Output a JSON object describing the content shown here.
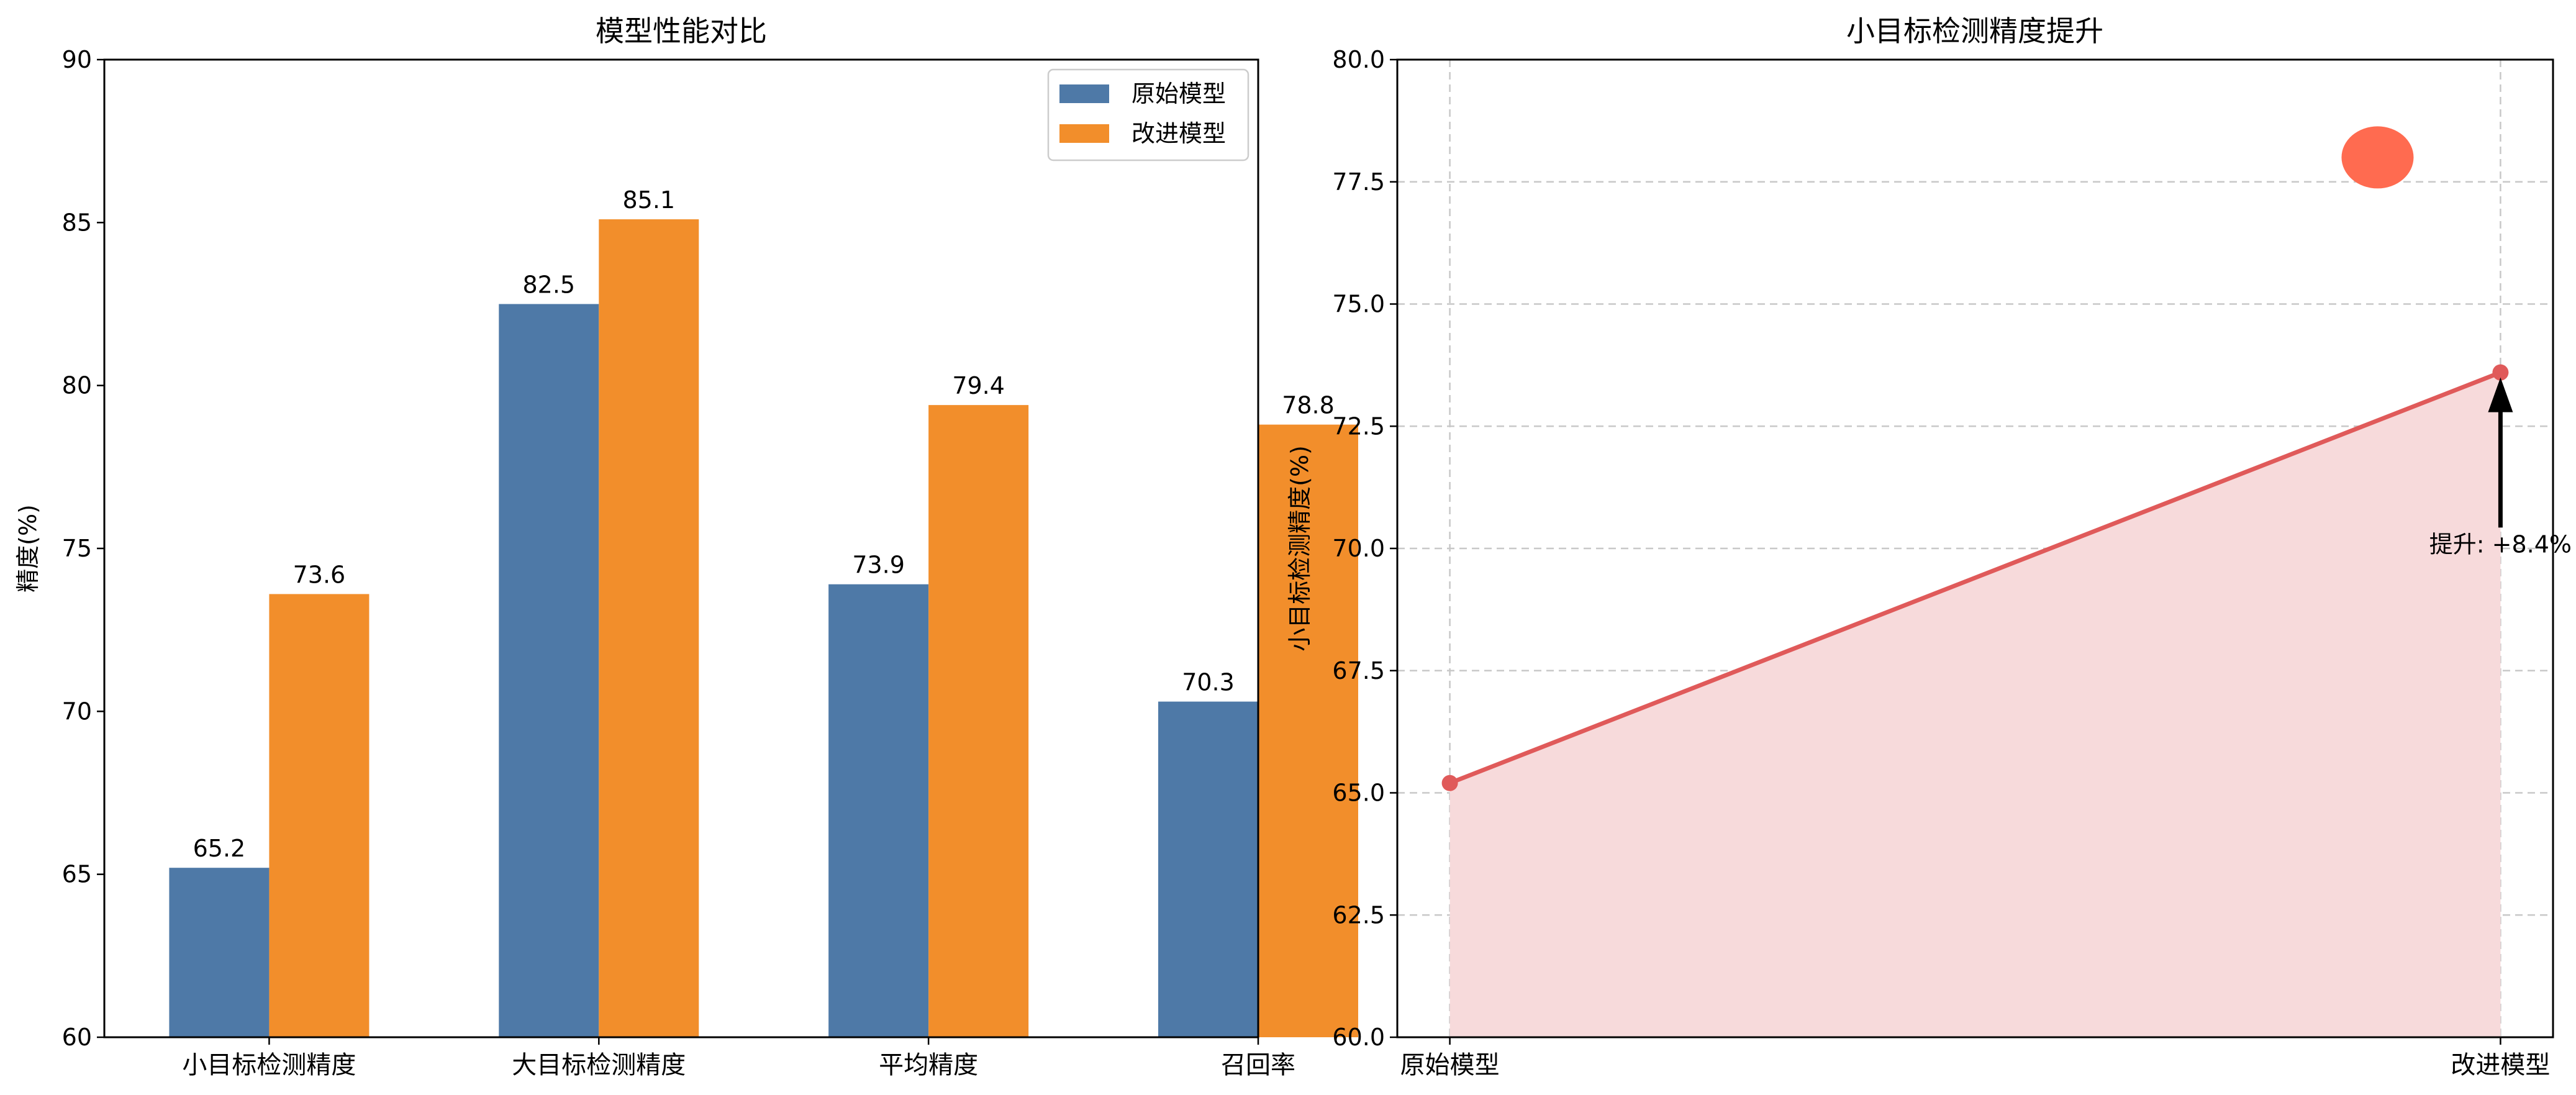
{
  "colors": {
    "original": "#4e79a7",
    "improved": "#f28e2b",
    "line": "#e05a5a",
    "fill": "#f7dadb",
    "marker": "#ff6b50",
    "grid": "#c8c8c8"
  },
  "chart_data": [
    {
      "type": "bar",
      "title": "模型性能对比",
      "xlabel": "",
      "ylabel": "精度(%)",
      "categories": [
        "小目标检测精度",
        "大目标检测精度",
        "平均精度",
        "召回率"
      ],
      "series": [
        {
          "name": "原始模型",
          "values": [
            65.2,
            82.5,
            73.9,
            70.3
          ]
        },
        {
          "name": "改进模型",
          "values": [
            73.6,
            85.1,
            79.4,
            78.8
          ]
        }
      ],
      "ylim": [
        60,
        90
      ],
      "yticks": [
        60,
        65,
        70,
        75,
        80,
        85,
        90
      ],
      "ytick_labels": [
        "60",
        "65",
        "70",
        "75",
        "80",
        "85",
        "90"
      ],
      "data_labels": [
        [
          "65.2",
          "82.5",
          "73.9",
          "70.3"
        ],
        [
          "73.6",
          "85.1",
          "79.4",
          "78.8"
        ]
      ],
      "legend": "top-right",
      "grid": false
    },
    {
      "type": "area",
      "title": "小目标检测精度提升",
      "xlabel": "",
      "ylabel": "小目标检测精度(%)",
      "x": [
        "原始模型",
        "改进模型"
      ],
      "values": [
        65.2,
        73.6
      ],
      "ylim": [
        60,
        80
      ],
      "yticks": [
        60,
        62.5,
        65,
        67.5,
        70,
        72.5,
        75,
        77.5,
        80
      ],
      "ytick_labels": [
        "60.0",
        "62.5",
        "65.0",
        "67.5",
        "70.0",
        "72.5",
        "75.0",
        "77.5",
        "80.0"
      ],
      "annotation": {
        "text": "提升: +8.4%",
        "x": 1,
        "y": 70.3,
        "arrow_to": 73.6
      },
      "extra_marker": {
        "x": 0.883,
        "y": 78
      },
      "grid": true
    }
  ]
}
